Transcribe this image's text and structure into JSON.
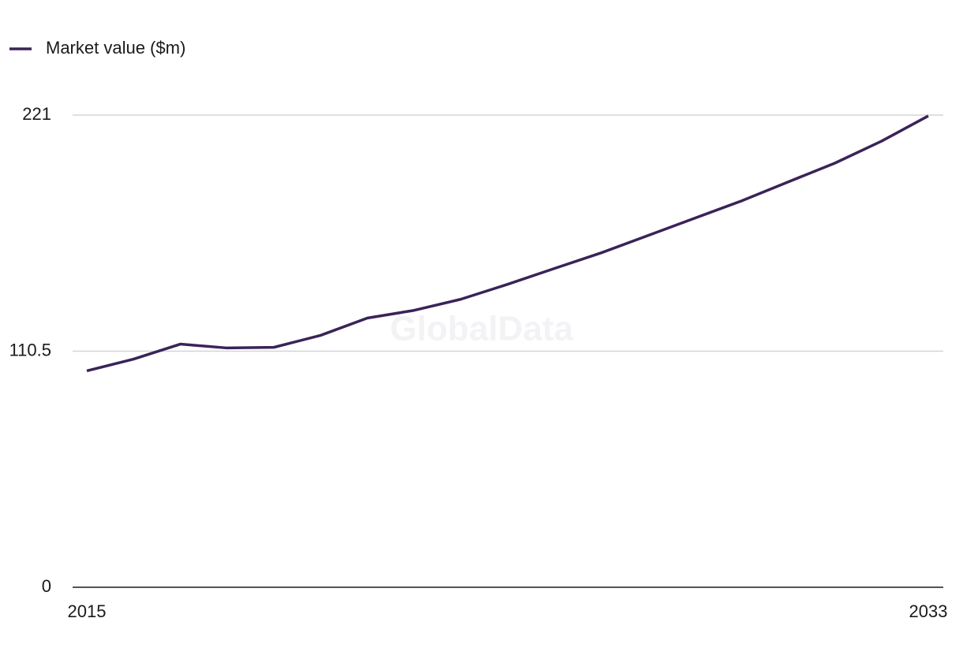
{
  "chart_data": {
    "type": "line",
    "watermark": "GlobalData",
    "x": [
      2015,
      2016,
      2017,
      2018,
      2019,
      2020,
      2021,
      2022,
      2023,
      2024,
      2025,
      2026,
      2027,
      2028,
      2029,
      2030,
      2031,
      2032,
      2033
    ],
    "series": [
      {
        "name": "Market value ($m)",
        "color": "#3a2358",
        "values": [
          101.3,
          106.8,
          113.8,
          112.0,
          112.3,
          117.9,
          126.0,
          129.6,
          134.8,
          141.8,
          149.2,
          156.5,
          164.6,
          172.7,
          180.8,
          189.7,
          198.5,
          208.8,
          220.6
        ]
      }
    ],
    "xlim": [
      2015,
      2033
    ],
    "xticks": [
      2015,
      2033
    ],
    "ylim": [
      0,
      221
    ],
    "yticks": [
      0,
      110.5,
      221
    ],
    "grid": true,
    "legend": "top-left"
  }
}
